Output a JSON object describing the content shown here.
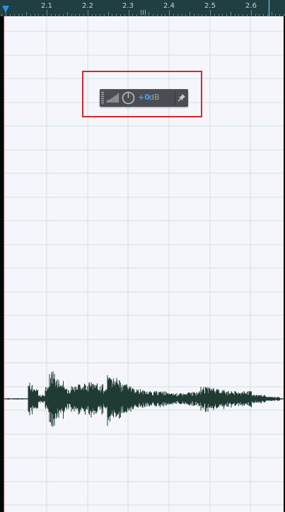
{
  "ruler": {
    "ticks": [
      {
        "label": "2.1",
        "time": 2.1
      },
      {
        "label": "2.2",
        "time": 2.2
      },
      {
        "label": "2.3",
        "time": 2.3
      },
      {
        "label": "2.4",
        "time": 2.4
      },
      {
        "label": "2.5",
        "time": 2.5
      },
      {
        "label": "2.6",
        "time": 2.6
      }
    ],
    "accent_color": "#2e8de6"
  },
  "hud": {
    "volume_value": "+0",
    "volume_unit": "dB",
    "value_color": "#3ea2ff"
  },
  "highlight": {
    "color": "#d7262e"
  },
  "waveform": {
    "color": "#1f3b34",
    "background_color": "#f5f6fc"
  },
  "icons": {
    "meter": "level-meter-icon",
    "knob": "volume-knob-icon",
    "pin": "pin-icon",
    "grip": "drag-grip-icon",
    "playhead": "playhead-marker-icon"
  }
}
